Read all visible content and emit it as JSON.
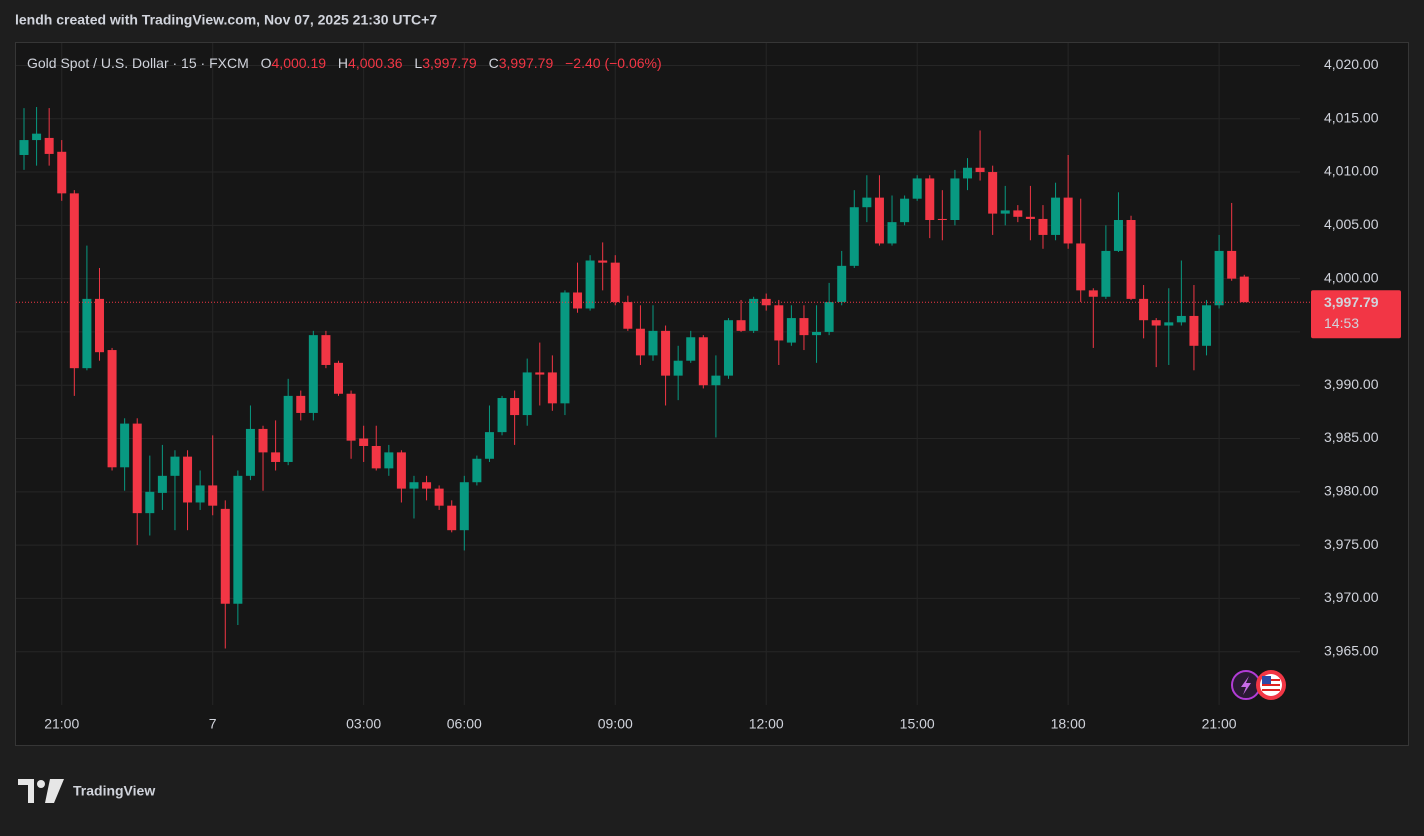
{
  "header": {
    "credit": "lendh created with TradingView.com, Nov 07, 2025 21:30 UTC+7",
    "symbol": "Gold Spot / U.S. Dollar · 15 · FXCM",
    "ohlc": [
      {
        "key": "O",
        "value": "4,000.19"
      },
      {
        "key": "H",
        "value": "4,000.36"
      },
      {
        "key": "L",
        "value": "3,997.79"
      },
      {
        "key": "C",
        "value": "3,997.79"
      }
    ],
    "change": "−2.40 (−0.06%)"
  },
  "brand": "TradingView",
  "chart_data": {
    "type": "candlestick",
    "up_color": "#089981",
    "down_color": "#f23645",
    "grid": true,
    "categories": [
      null,
      null,
      null,
      "21:00",
      null,
      null,
      null,
      null,
      null,
      null,
      null,
      null,
      null,
      null,
      null,
      "7",
      null,
      null,
      null,
      null,
      null,
      null,
      null,
      null,
      null,
      null,
      null,
      "03:00",
      null,
      null,
      null,
      null,
      null,
      null,
      null,
      "06:00",
      null,
      null,
      null,
      null,
      null,
      null,
      null,
      null,
      null,
      null,
      null,
      "09:00",
      null,
      null,
      null,
      null,
      null,
      null,
      null,
      null,
      null,
      null,
      null,
      "12:00",
      null,
      null,
      null,
      null,
      null,
      null,
      null,
      null,
      null,
      null,
      null,
      "15:00",
      null,
      null,
      null,
      null,
      null,
      null,
      null,
      null,
      null,
      null,
      null,
      "18:00",
      null,
      null,
      null,
      null,
      null,
      null,
      null,
      null,
      null,
      null,
      null,
      "21:00",
      null,
      null
    ],
    "open": [
      4011.6,
      4013.0,
      4013.2,
      4011.9,
      4008.0,
      3991.6,
      3998.1,
      3993.3,
      3982.3,
      3986.4,
      3978.0,
      3979.9,
      3981.5,
      3983.3,
      3979.0,
      3980.6,
      3978.4,
      3969.5,
      3981.5,
      3985.9,
      3983.7,
      3982.8,
      3989.0,
      3987.4,
      3994.7,
      3992.1,
      3989.2,
      3985.0,
      3984.3,
      3982.2,
      3983.7,
      3980.3,
      3980.9,
      3980.3,
      3978.7,
      3976.4,
      3980.9,
      3983.1,
      3985.6,
      3988.8,
      3987.2,
      3991.2,
      3991.2,
      3988.3,
      3998.7,
      3997.2,
      4001.7,
      4001.5,
      3997.8,
      3995.3,
      3992.8,
      3995.1,
      3990.9,
      3992.3,
      3994.5,
      3990.0,
      3990.9,
      3996.1,
      3995.1,
      3998.1,
      3997.5,
      3994.0,
      3996.3,
      3994.7,
      3995.0,
      3997.8,
      4001.2,
      4006.7,
      4007.6,
      4003.3,
      4005.3,
      4007.5,
      4009.4,
      4005.6,
      4005.5,
      4009.4,
      4010.4,
      4010.0,
      4006.1,
      4006.4,
      4005.8,
      4005.6,
      4004.1,
      4007.6,
      4003.3,
      3998.9,
      3998.3,
      4002.6,
      4005.5,
      3998.1,
      3996.1,
      3995.6,
      3995.9,
      3996.5,
      3993.7,
      3997.5,
      4002.6,
      4000.19
    ],
    "high": [
      4016.0,
      4016.1,
      4016.0,
      4013.0,
      4008.3,
      4003.1,
      4001.0,
      3993.5,
      3986.9,
      3986.9,
      3983.4,
      3984.4,
      3983.9,
      3983.9,
      3982.0,
      3985.3,
      3979.2,
      3982.0,
      3988.1,
      3986.2,
      3986.7,
      3990.6,
      3989.5,
      3995.1,
      3995.1,
      3992.3,
      3989.5,
      3986.2,
      3986.2,
      3984.4,
      3983.9,
      3981.5,
      3981.5,
      3980.6,
      3979.2,
      3981.5,
      3983.4,
      3988.1,
      3989.0,
      3989.5,
      3992.5,
      3994.0,
      3992.8,
      3998.9,
      4001.5,
      4002.2,
      4003.4,
      4002.2,
      3998.4,
      3997.5,
      3997.5,
      3995.6,
      3993.7,
      3995.1,
      3994.7,
      3992.8,
      3996.3,
      3998.0,
      3998.3,
      3998.6,
      3998.0,
      3997.5,
      3997.5,
      3997.5,
      3999.6,
      4002.6,
      4008.3,
      4009.7,
      4009.7,
      4007.8,
      4007.8,
      4009.7,
      4009.7,
      4008.3,
      4010.2,
      4011.3,
      4013.9,
      4010.6,
      4008.7,
      4006.9,
      4008.7,
      4006.9,
      4009.0,
      4011.6,
      4007.5,
      3999.1,
      4005.0,
      4008.1,
      4005.9,
      3999.4,
      3996.3,
      3999.1,
      4001.7,
      3999.4,
      3998.0,
      4004.1,
      4007.1,
      4000.36
    ],
    "low": [
      4010.2,
      4010.6,
      4010.6,
      4007.3,
      3989.0,
      3991.4,
      3992.3,
      3982.0,
      3980.1,
      3975.0,
      3975.9,
      3978.3,
      3976.4,
      3976.4,
      3978.3,
      3977.8,
      3965.3,
      3967.5,
      3981.1,
      3980.1,
      3982.0,
      3982.5,
      3986.7,
      3986.7,
      3991.6,
      3989.0,
      3983.1,
      3982.8,
      3982.0,
      3981.5,
      3979.0,
      3977.5,
      3979.2,
      3978.3,
      3976.2,
      3974.5,
      3980.6,
      3982.8,
      3985.3,
      3984.4,
      3986.2,
      3988.1,
      3987.6,
      3987.2,
      3996.8,
      3997.0,
      3998.9,
      3997.5,
      3995.1,
      3991.9,
      3992.3,
      3988.1,
      3988.6,
      3992.1,
      3989.7,
      3985.1,
      3990.6,
      3995.0,
      3994.9,
      3997.0,
      3991.9,
      3993.7,
      3993.3,
      3992.1,
      3994.7,
      3997.5,
      4001.0,
      4005.3,
      4003.1,
      4003.1,
      4005.0,
      4007.3,
      4003.8,
      4003.6,
      4005.0,
      4008.3,
      4009.2,
      4004.1,
      4005.0,
      4005.3,
      4003.6,
      4002.8,
      4003.6,
      4002.8,
      3997.8,
      3993.5,
      3998.1,
      4002.5,
      3998.0,
      3994.4,
      3991.7,
      3991.9,
      3995.6,
      3991.4,
      3992.8,
      3997.2,
      3999.8,
      3997.79
    ],
    "close": [
      4013.0,
      4013.6,
      4011.7,
      4008.0,
      3991.6,
      3998.1,
      3993.1,
      3982.3,
      3986.4,
      3978.0,
      3980.0,
      3981.5,
      3983.3,
      3979.0,
      3980.6,
      3978.7,
      3969.5,
      3981.5,
      3985.9,
      3983.7,
      3982.8,
      3989.0,
      3987.4,
      3994.7,
      3991.9,
      3989.2,
      3984.8,
      3984.3,
      3982.2,
      3983.7,
      3980.3,
      3980.9,
      3980.3,
      3978.7,
      3976.4,
      3980.9,
      3983.1,
      3985.6,
      3988.8,
      3987.2,
      3991.2,
      3991.0,
      3988.3,
      3998.7,
      3997.2,
      4001.7,
      4001.5,
      3997.8,
      3995.3,
      3992.8,
      3995.1,
      3990.9,
      3992.3,
      3994.5,
      3990.0,
      3990.9,
      3996.1,
      3995.1,
      3998.1,
      3997.5,
      3994.2,
      3996.3,
      3994.7,
      3995.0,
      3997.8,
      4001.2,
      4006.7,
      4007.6,
      4003.3,
      4005.3,
      4007.5,
      4009.4,
      4005.5,
      4005.5,
      4009.4,
      4010.4,
      4010.0,
      4006.1,
      4006.4,
      4005.8,
      4005.6,
      4004.1,
      4007.6,
      4003.3,
      3998.9,
      3998.3,
      4002.6,
      4005.5,
      3998.1,
      3996.1,
      3995.6,
      3995.9,
      3996.5,
      3993.7,
      3997.5,
      4002.6,
      4000.0,
      3997.79
    ],
    "ylim": [
      3960,
      4022.2
    ],
    "yticks": [
      {
        "value": 3965,
        "label": "3,965.00"
      },
      {
        "value": 3970,
        "label": "3,970.00"
      },
      {
        "value": 3975,
        "label": "3,975.00"
      },
      {
        "value": 3980,
        "label": "3,980.00"
      },
      {
        "value": 3985,
        "label": "3,985.00"
      },
      {
        "value": 3990,
        "label": "3,990.00"
      },
      {
        "value": 3995,
        "label": "3,995.00"
      },
      {
        "value": 4000,
        "label": "4,000.00"
      },
      {
        "value": 4005,
        "label": "4,005.00"
      },
      {
        "value": 4010,
        "label": "4,010.00"
      },
      {
        "value": 4015,
        "label": "4,015.00"
      },
      {
        "value": 4020,
        "label": "4,020.00"
      }
    ],
    "last_price": {
      "value": 3997.79,
      "label": "3,997.79"
    },
    "countdown": "14:53"
  }
}
